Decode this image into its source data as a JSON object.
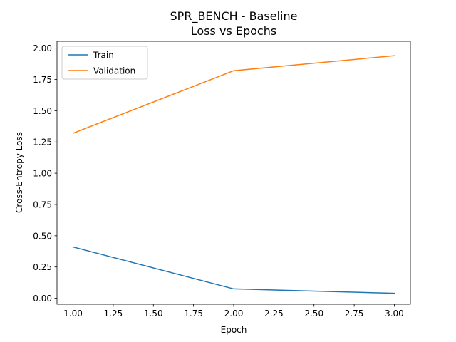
{
  "chart_data": {
    "type": "line",
    "title": "SPR_BENCH - Baseline",
    "subtitle": "Loss vs Epochs",
    "xlabel": "Epoch",
    "ylabel": "Cross-Entropy Loss",
    "xlim": [
      0.9,
      3.1
    ],
    "ylim": [
      -0.048,
      2.055
    ],
    "x_ticks": [
      1.0,
      1.25,
      1.5,
      1.75,
      2.0,
      2.25,
      2.5,
      2.75,
      3.0
    ],
    "x_tick_labels": [
      "1.00",
      "1.25",
      "1.50",
      "1.75",
      "2.00",
      "2.25",
      "2.50",
      "2.75",
      "3.00"
    ],
    "y_ticks": [
      0.0,
      0.25,
      0.5,
      0.75,
      1.0,
      1.25,
      1.5,
      1.75,
      2.0
    ],
    "y_tick_labels": [
      "0.00",
      "0.25",
      "0.50",
      "0.75",
      "1.00",
      "1.25",
      "1.50",
      "1.75",
      "2.00"
    ],
    "x": [
      1,
      2,
      3
    ],
    "series": [
      {
        "name": "Train",
        "values": [
          0.41,
          0.075,
          0.04
        ],
        "color": "#1f77b4"
      },
      {
        "name": "Validation",
        "values": [
          1.32,
          1.82,
          1.94
        ],
        "color": "#ff7f0e"
      }
    ],
    "grid": false,
    "legend_position": "top-left"
  }
}
